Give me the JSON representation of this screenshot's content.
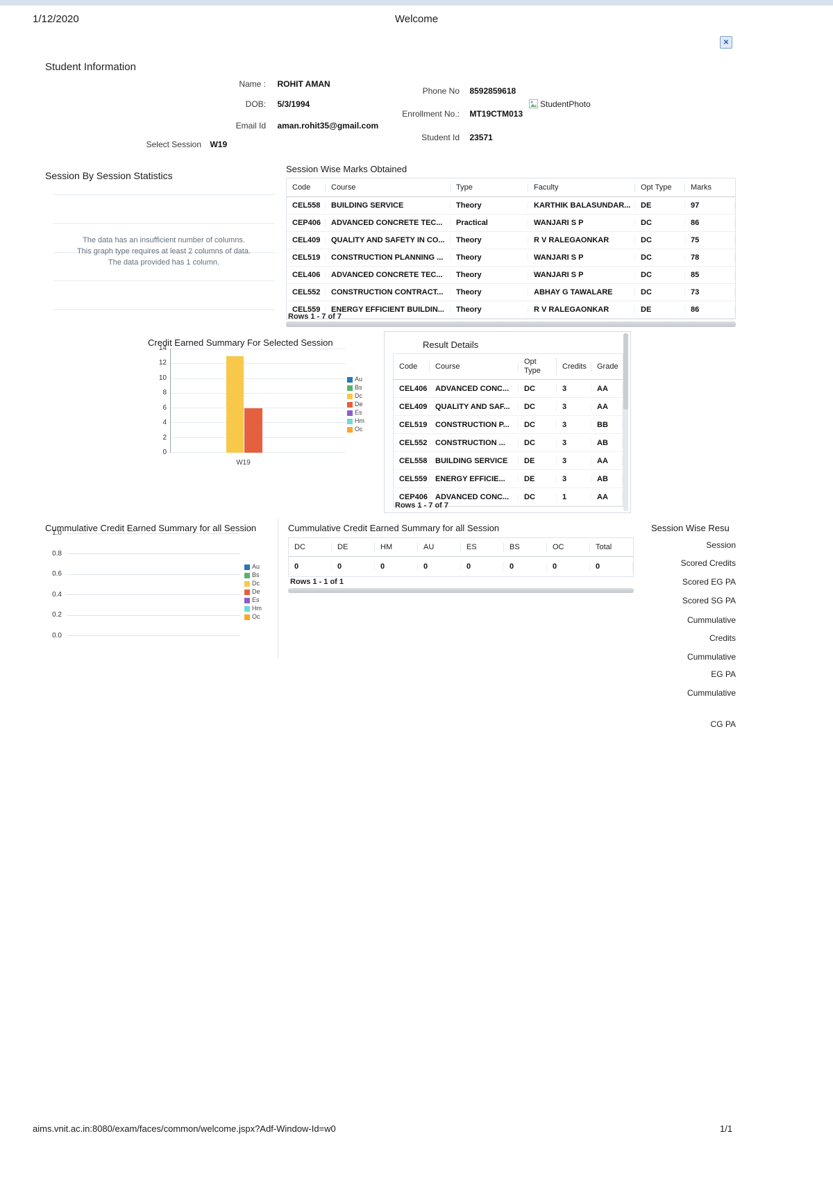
{
  "header": {
    "date": "1/12/2020",
    "title": "Welcome",
    "close_glyph": "✕"
  },
  "student_info": {
    "heading": "Student Information",
    "fields": {
      "name_label": "Name :",
      "name": "ROHIT AMAN",
      "dob_label": "DOB:",
      "dob": "5/3/1994",
      "email_label": "Email Id",
      "email": "aman.rohit35@gmail.com",
      "session_label": "Select Session",
      "session": "W19",
      "phone_label": "Phone No",
      "phone": "8592859618",
      "enrollment_label": "Enrollment No.:",
      "enrollment": "MT19CTM013",
      "student_id_label": "Student Id",
      "student_id": "23571",
      "photo_label": "StudentPhoto"
    }
  },
  "session_stats": {
    "heading": "Session By Session Statistics",
    "error_lines": [
      "The data has an insufficient number of columns.",
      "This graph type requires at least 2 columns of data.",
      "The data provided has 1 column."
    ]
  },
  "marks_table": {
    "heading": "Session Wise Marks Obtained",
    "columns": [
      "Code",
      "Course",
      "Type",
      "Faculty",
      "Opt Type",
      "Marks"
    ],
    "rows": [
      {
        "code": "CEL558",
        "course": "BUILDING SERVICE",
        "type": "Theory",
        "faculty": "KARTHIK BALASUNDAR...",
        "opt": "DE",
        "marks": "97"
      },
      {
        "code": "CEP406",
        "course": "ADVANCED CONCRETE TEC...",
        "type": "Practical",
        "faculty": "WANJARI S P",
        "opt": "DC",
        "marks": "86"
      },
      {
        "code": "CEL409",
        "course": "QUALITY AND SAFETY IN CO...",
        "type": "Theory",
        "faculty": "R V RALEGAONKAR",
        "opt": "DC",
        "marks": "75"
      },
      {
        "code": "CEL519",
        "course": "CONSTRUCTION PLANNING ...",
        "type": "Theory",
        "faculty": "WANJARI S P",
        "opt": "DC",
        "marks": "78"
      },
      {
        "code": "CEL406",
        "course": "ADVANCED CONCRETE TEC...",
        "type": "Theory",
        "faculty": "WANJARI S P",
        "opt": "DC",
        "marks": "85"
      },
      {
        "code": "CEL552",
        "course": "CONSTRUCTION CONTRACT...",
        "type": "Theory",
        "faculty": "ABHAY G TAWALARE",
        "opt": "DC",
        "marks": "73"
      },
      {
        "code": "CEL559",
        "course": "ENERGY EFFICIENT BUILDIN...",
        "type": "Theory",
        "faculty": "R V RALEGAONKAR",
        "opt": "DE",
        "marks": "86"
      }
    ],
    "footer": "Rows 1 - 7 of 7"
  },
  "credit_chart": {
    "title": "Credit Earned Summary For Selected Session",
    "y_ticks": [
      "14",
      "12",
      "10",
      "8",
      "6",
      "4",
      "2",
      "0"
    ],
    "x_label": "W19"
  },
  "legend": {
    "items": [
      "Au",
      "Bs",
      "Dc",
      "De",
      "Es",
      "Hm",
      "Oc"
    ],
    "colors": [
      "#2878b5",
      "#5cb269",
      "#f8c84b",
      "#e5603f",
      "#8a5ec8",
      "#6fdbd4",
      "#fba628"
    ]
  },
  "result_details": {
    "heading": "Result Details",
    "columns": [
      "Code",
      "Course",
      "Opt Type",
      "Credits",
      "Grade"
    ],
    "rows": [
      {
        "code": "CEL406",
        "course": "ADVANCED CONC...",
        "opt": "DC",
        "credits": "3",
        "grade": "AA"
      },
      {
        "code": "CEL409",
        "course": "QUALITY AND SAF...",
        "opt": "DC",
        "credits": "3",
        "grade": "AA"
      },
      {
        "code": "CEL519",
        "course": "CONSTRUCTION P...",
        "opt": "DC",
        "credits": "3",
        "grade": "BB"
      },
      {
        "code": "CEL552",
        "course": "CONSTRUCTION ...",
        "opt": "DC",
        "credits": "3",
        "grade": "AB"
      },
      {
        "code": "CEL558",
        "course": "BUILDING SERVICE",
        "opt": "DE",
        "credits": "3",
        "grade": "AA"
      },
      {
        "code": "CEL559",
        "course": "ENERGY EFFICIE...",
        "opt": "DE",
        "credits": "3",
        "grade": "AB"
      },
      {
        "code": "CEP406",
        "course": "ADVANCED CONC...",
        "opt": "DC",
        "credits": "1",
        "grade": "AA"
      }
    ],
    "footer": "Rows 1 - 7 of 7"
  },
  "cumulative_chart": {
    "title": "Cummulative Credit Earned Summary for all Session",
    "y_ticks": [
      "1.0",
      "0.8",
      "0.6",
      "0.4",
      "0.2",
      "0.0"
    ]
  },
  "cumulative_table": {
    "heading": "Cummulative Credit Earned Summary for all Session",
    "columns": [
      "DC",
      "DE",
      "HM",
      "AU",
      "ES",
      "BS",
      "OC",
      "Total"
    ],
    "values": [
      "0",
      "0",
      "0",
      "0",
      "0",
      "0",
      "0",
      "0"
    ],
    "footer": "Rows 1 - 1 of 1"
  },
  "session_result_panel": {
    "heading": "Session Wise Resu",
    "labels": [
      "Session",
      "Scored Credits",
      "Scored EG PA",
      "Scored SG PA",
      "Cummulative",
      "Credits",
      "Cummulative",
      "EG PA",
      "Cummulative",
      "CG PA"
    ]
  },
  "page_footer": {
    "url": "aims.vnit.ac.in:8080/exam/faces/common/welcome.jspx?Adf-Window-Id=w0",
    "page_num": "1/1"
  },
  "chart_data": [
    {
      "type": "bar",
      "title": "Session By Session Statistics",
      "categories": [],
      "series": [],
      "annotations": [
        "The data has an insufficient number of columns.",
        "This graph type requires at least 2 columns of data.",
        "The data provided has 1 column."
      ],
      "grid": true
    },
    {
      "type": "bar",
      "title": "Credit Earned Summary For Selected Session",
      "categories": [
        "W19"
      ],
      "series": [
        {
          "name": "Au",
          "values": [
            0
          ]
        },
        {
          "name": "Bs",
          "values": [
            0
          ]
        },
        {
          "name": "Dc",
          "values": [
            13
          ]
        },
        {
          "name": "De",
          "values": [
            6
          ]
        },
        {
          "name": "Es",
          "values": [
            0
          ]
        },
        {
          "name": "Hm",
          "values": [
            0
          ]
        },
        {
          "name": "Oc",
          "values": [
            0
          ]
        }
      ],
      "ylim": [
        0,
        14
      ],
      "y_tick_step": 2,
      "legend_position": "right",
      "grid": true
    },
    {
      "type": "bar",
      "title": "Cummulative Credit Earned Summary for all Session",
      "categories": [],
      "series": [],
      "ylim": [
        0,
        1
      ],
      "y_tick_step": 0.2,
      "legend_position": "right",
      "grid": true
    }
  ]
}
